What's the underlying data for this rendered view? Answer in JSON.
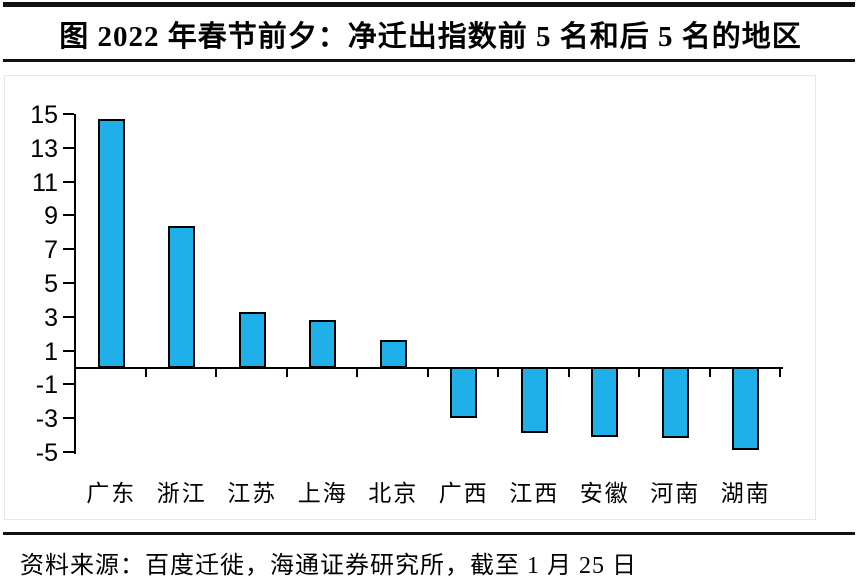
{
  "title": "图  2022 年春节前夕：净迁出指数前 5 名和后 5 名的地区",
  "source": "资料来源：百度迁徙，海通证券研究所，截至 1 月 25 日",
  "colors": {
    "bar_fill": "#1FB0EA",
    "bar_border": "#000000",
    "axis": "#000000",
    "rule": "#111111",
    "panel_border": "#E6E6E6"
  },
  "chart_data": {
    "type": "bar",
    "categories": [
      "广东",
      "浙江",
      "江苏",
      "上海",
      "北京",
      "广西",
      "江西",
      "安徽",
      "河南",
      "湖南"
    ],
    "values": [
      14.7,
      8.4,
      3.3,
      2.8,
      1.6,
      -3.0,
      -3.9,
      -4.1,
      -4.2,
      -4.9
    ],
    "title": "2022 年春节前夕：净迁出指数前 5 名和后 5 名的地区",
    "xlabel": "",
    "ylabel": "",
    "ylim": [
      -5,
      15
    ],
    "yticks": [
      15,
      13,
      11,
      9,
      7,
      5,
      3,
      1,
      -1,
      -3,
      -5
    ],
    "grid": false,
    "legend": null,
    "bar_orientation": "vertical"
  }
}
